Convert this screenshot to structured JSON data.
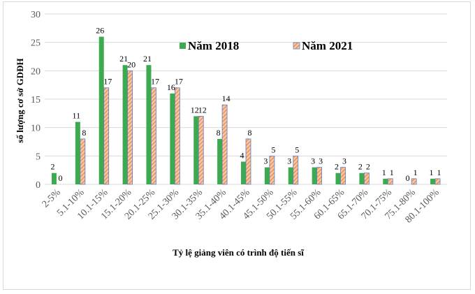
{
  "chart_data": {
    "type": "bar",
    "categories": [
      "2-5%",
      "5.1-10%",
      "10.1-15%",
      "15.1-20%",
      "20.1-25%",
      "25.1-30%",
      "30.1-35%",
      "35.1-40%",
      "40.1-45%",
      "45.1-50%",
      "50.1-55%",
      "55.1-60%",
      "60.1-65%",
      "65.1-70%",
      "70.1-75%",
      "75.1-80%",
      "80.1-100%"
    ],
    "series": [
      {
        "name": "Năm 2018",
        "values": [
          2,
          11,
          26,
          21,
          21,
          16,
          12,
          8,
          4,
          3,
          3,
          3,
          2,
          2,
          1,
          0,
          1
        ],
        "color": "#3cab4f",
        "pattern": "solid"
      },
      {
        "name": "Năm 2021",
        "values": [
          0,
          8,
          17,
          20,
          17,
          17,
          12,
          14,
          8,
          5,
          5,
          3,
          3,
          2,
          1,
          1,
          1
        ],
        "color": "#ef9a6c",
        "pattern": "diagonal-stripe",
        "stroke": "#5b7fc7"
      }
    ],
    "xlabel": "Tỷ lệ giảng viên có trình độ tiến sĩ",
    "ylabel": "số lượng cơ sở GDĐH",
    "ylim": [
      0,
      30
    ],
    "yticks": [
      0,
      5,
      10,
      15,
      20,
      25,
      30
    ],
    "grid": true,
    "legend_position": "top-right"
  }
}
